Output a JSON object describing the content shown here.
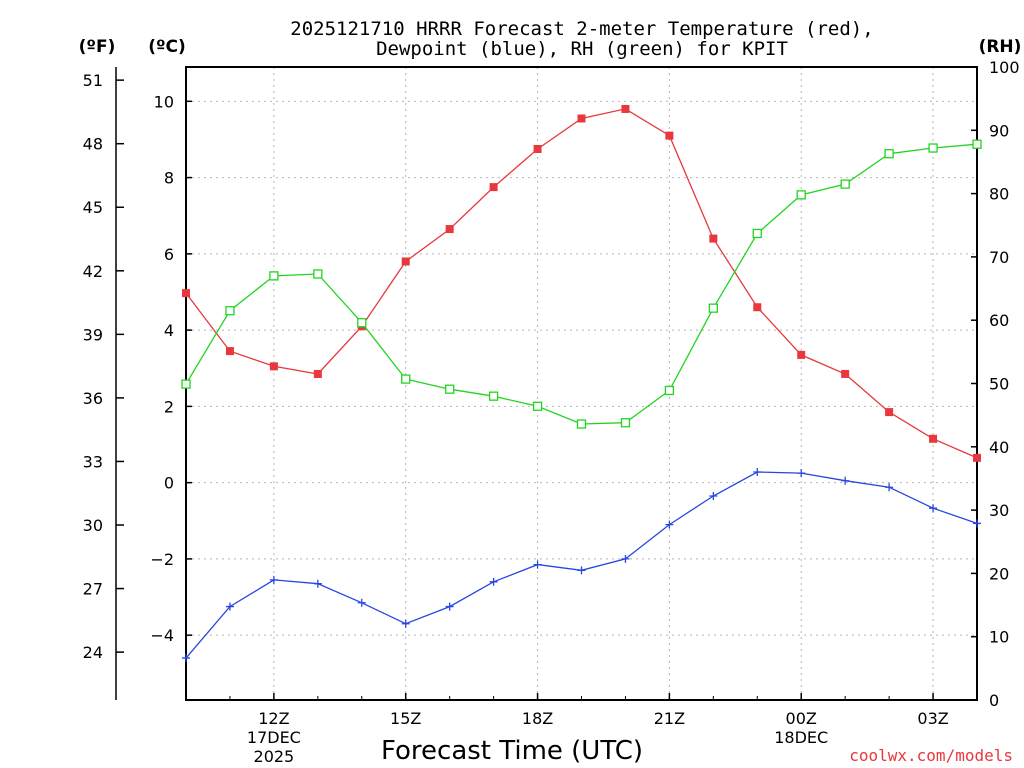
{
  "chart_data": {
    "type": "line",
    "title_line1": "2025121710 HRRR Forecast 2-meter Temperature (red),",
    "title_line2": "Dewpoint (blue), RH (green) for KPIT",
    "unit_f": "(ºF)",
    "unit_c": "(ºC)",
    "unit_rh": "(RH)",
    "xlabel": "Forecast Time (UTC)",
    "credit": "coolwx.com/models",
    "x_hours": [
      10,
      11,
      12,
      13,
      14,
      15,
      16,
      17,
      18,
      19,
      20,
      21,
      22,
      23,
      24,
      25,
      26,
      27,
      28
    ],
    "xlim": [
      10,
      28
    ],
    "x_ticks": [
      {
        "hour": 12,
        "label": "12Z",
        "date": "17DEC",
        "year": "2025"
      },
      {
        "hour": 15,
        "label": "15Z",
        "date": "",
        "year": ""
      },
      {
        "hour": 18,
        "label": "18Z",
        "date": "",
        "year": ""
      },
      {
        "hour": 21,
        "label": "21Z",
        "date": "",
        "year": ""
      },
      {
        "hour": 24,
        "label": "00Z",
        "date": "18DEC",
        "year": ""
      },
      {
        "hour": 27,
        "label": "03Z",
        "date": "",
        "year": ""
      }
    ],
    "celsius_ticks": [
      "−4",
      "−2",
      "0",
      "2",
      "4",
      "6",
      "8",
      "10"
    ],
    "celsius_tick_values": [
      -4,
      -2,
      0,
      2,
      4,
      6,
      8,
      10
    ],
    "fahrenheit_ticks": [
      "24",
      "27",
      "30",
      "33",
      "36",
      "39",
      "42",
      "45",
      "48",
      "51"
    ],
    "fahrenheit_tick_values": [
      24,
      27,
      30,
      33,
      36,
      39,
      42,
      45,
      48,
      51
    ],
    "rh_ticks": [
      "0",
      "10",
      "20",
      "30",
      "40",
      "50",
      "60",
      "70",
      "80",
      "90",
      "100"
    ],
    "rh_tick_values": [
      0,
      10,
      20,
      30,
      40,
      50,
      60,
      70,
      80,
      90,
      100
    ],
    "ylim_c": [
      -5.7,
      10.9
    ],
    "ylim_rh": [
      0,
      100
    ],
    "series": [
      {
        "name": "Temperature",
        "unit": "°C",
        "axis": "c",
        "color": "#e8383d",
        "marker": "filled-square",
        "values": [
          4.97,
          3.45,
          3.05,
          2.85,
          4.1,
          5.8,
          6.65,
          7.75,
          8.75,
          9.55,
          9.8,
          9.1,
          6.4,
          4.6,
          3.35,
          2.85,
          1.85,
          1.15,
          0.65
        ]
      },
      {
        "name": "Dewpoint",
        "unit": "°C",
        "axis": "c",
        "color": "#2846e0",
        "marker": "plus",
        "values": [
          -4.6,
          -3.25,
          -2.55,
          -2.65,
          -3.15,
          -3.7,
          -3.25,
          -2.6,
          -2.15,
          -2.3,
          -2.0,
          -1.1,
          -0.35,
          0.28,
          0.25,
          0.05,
          -0.12,
          -0.67,
          -1.07
        ]
      },
      {
        "name": "RH",
        "unit": "%",
        "axis": "rh",
        "color": "#22d422",
        "marker": "open-square",
        "values": [
          49.9,
          61.5,
          67.0,
          67.3,
          59.6,
          50.7,
          49.1,
          48.0,
          46.4,
          43.6,
          43.8,
          48.9,
          61.9,
          73.7,
          79.8,
          81.5,
          86.3,
          87.2,
          87.8
        ]
      }
    ]
  }
}
